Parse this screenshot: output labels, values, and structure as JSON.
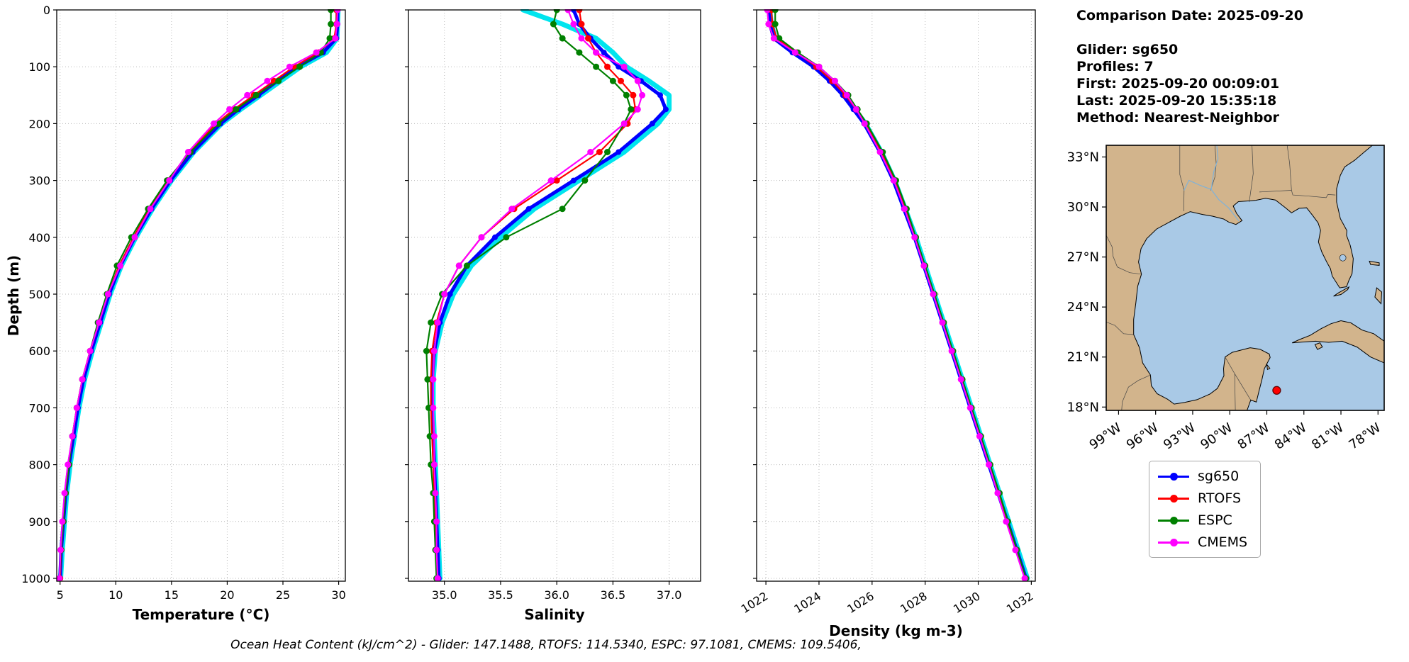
{
  "info_panel": {
    "comparison_date": "Comparison Date: 2025-09-20",
    "glider": "Glider: sg650",
    "profiles": "Profiles: 7",
    "first": "First: 2025-09-20 00:09:01",
    "last": "Last: 2025-09-20 15:35:18",
    "method": "Method: Nearest-Neighbor"
  },
  "footer_text": "Ocean Heat Content (kJ/cm^2) - Glider: 147.1488,  RTOFS: 114.5340,  ESPC: 97.1081,  CMEMS: 109.5406,",
  "legend": {
    "items": [
      {
        "label": "sg650",
        "color": "#0000ff"
      },
      {
        "label": "RTOFS",
        "color": "#ff0000"
      },
      {
        "label": "ESPC",
        "color": "#008000"
      },
      {
        "label": "CMEMS",
        "color": "#ff00ff"
      }
    ]
  },
  "map": {
    "extent": {
      "lon_min": -100,
      "lon_max": -77.5,
      "lat_min": 17.8,
      "lat_max": 33.7
    },
    "lat_ticks": [
      {
        "label": "33°N",
        "value": 33
      },
      {
        "label": "30°N",
        "value": 30
      },
      {
        "label": "27°N",
        "value": 27
      },
      {
        "label": "24°N",
        "value": 24
      },
      {
        "label": "21°N",
        "value": 21
      },
      {
        "label": "18°N",
        "value": 18
      }
    ],
    "lon_ticks": [
      {
        "label": "99°W",
        "value": -99
      },
      {
        "label": "96°W",
        "value": -96
      },
      {
        "label": "93°W",
        "value": -93
      },
      {
        "label": "90°W",
        "value": -90
      },
      {
        "label": "87°W",
        "value": -87
      },
      {
        "label": "84°W",
        "value": -84
      },
      {
        "label": "81°W",
        "value": -81
      },
      {
        "label": "78°W",
        "value": -78
      }
    ],
    "land_color": "#d2b48c",
    "ocean_color": "#a9c9e6",
    "marker": {
      "lon": -86.2,
      "lat": 19.0,
      "color": "#ff0000"
    }
  },
  "chart_data": [
    {
      "type": "line",
      "name": "temperature",
      "xlabel": "Temperature (°C)",
      "ylabel": "Depth (m)",
      "xlim": [
        4.7,
        30.6
      ],
      "xticks": [
        5,
        10,
        15,
        20,
        25,
        30
      ],
      "xtick_labels": [
        "5",
        "10",
        "15",
        "20",
        "25",
        "30"
      ],
      "xtick_rotation": 0,
      "ylim": [
        0,
        1005
      ],
      "yticks": [
        0,
        100,
        200,
        300,
        400,
        500,
        600,
        700,
        800,
        900,
        1000
      ],
      "show_ytick_labels": true,
      "grid": true,
      "depths": [
        0,
        25,
        50,
        75,
        100,
        125,
        150,
        175,
        200,
        250,
        300,
        350,
        400,
        450,
        500,
        550,
        600,
        650,
        700,
        750,
        800,
        850,
        900,
        950,
        1000
      ],
      "series": [
        {
          "name": "sg650-profiles",
          "color": "#00e5ee",
          "lw": 7,
          "ms": 0,
          "values": [
            29.95,
            29.9,
            29.85,
            28.9,
            26.6,
            24.8,
            23.0,
            21.2,
            19.5,
            17.0,
            15.0,
            13.3,
            11.8,
            10.5,
            9.5,
            8.7,
            7.9,
            7.2,
            6.7,
            6.3,
            5.9,
            5.6,
            5.4,
            5.2,
            5.05
          ]
        },
        {
          "name": "sg650",
          "color": "#0000ff",
          "lw": 5,
          "ms": 4,
          "values": [
            29.9,
            29.9,
            29.8,
            28.6,
            26.3,
            24.5,
            22.8,
            21.0,
            19.4,
            16.9,
            14.9,
            13.2,
            11.7,
            10.4,
            9.4,
            8.6,
            7.8,
            7.1,
            6.6,
            6.2,
            5.8,
            5.5,
            5.3,
            5.1,
            5.0
          ]
        },
        {
          "name": "RTOFS",
          "color": "#ff0000",
          "lw": 2.2,
          "ms": 4.5,
          "values": [
            29.8,
            29.8,
            29.6,
            28.2,
            26.0,
            24.2,
            22.4,
            20.6,
            19.0,
            16.6,
            14.7,
            13.0,
            11.6,
            10.3,
            9.3,
            8.5,
            7.7,
            7.0,
            6.5,
            6.1,
            5.8,
            5.5,
            5.3,
            5.1,
            5.0
          ]
        },
        {
          "name": "ESPC",
          "color": "#008000",
          "lw": 2.2,
          "ms": 4.5,
          "values": [
            29.3,
            29.3,
            29.2,
            28.4,
            26.5,
            24.6,
            22.6,
            20.8,
            19.2,
            16.7,
            14.6,
            12.9,
            11.4,
            10.1,
            9.2,
            8.4,
            7.7,
            7.0,
            6.5,
            6.1,
            5.8,
            5.5,
            5.3,
            5.1,
            4.95
          ]
        },
        {
          "name": "CMEMS",
          "color": "#ff00ff",
          "lw": 2.2,
          "ms": 4.5,
          "values": [
            29.9,
            29.85,
            29.7,
            28.0,
            25.6,
            23.6,
            21.8,
            20.2,
            18.8,
            16.5,
            14.8,
            13.1,
            11.7,
            10.4,
            9.3,
            8.5,
            7.7,
            7.0,
            6.5,
            6.1,
            5.7,
            5.4,
            5.2,
            5.05,
            4.95
          ]
        }
      ]
    },
    {
      "type": "line",
      "name": "salinity",
      "xlabel": "Salinity",
      "ylabel": "",
      "xlim": [
        34.68,
        37.28
      ],
      "xticks": [
        35.0,
        35.5,
        36.0,
        36.5,
        37.0
      ],
      "xtick_labels": [
        "35.0",
        "35.5",
        "36.0",
        "36.5",
        "37.0"
      ],
      "xtick_rotation": 0,
      "ylim": [
        0,
        1005
      ],
      "yticks": [
        0,
        100,
        200,
        300,
        400,
        500,
        600,
        700,
        800,
        900,
        1000
      ],
      "show_ytick_labels": false,
      "grid": true,
      "depths": [
        0,
        25,
        50,
        75,
        100,
        125,
        150,
        175,
        200,
        250,
        300,
        350,
        400,
        450,
        500,
        550,
        600,
        650,
        700,
        750,
        800,
        850,
        900,
        950,
        1000
      ],
      "series": [
        {
          "name": "sg650-profiles",
          "color": "#00e5ee",
          "lw": 7,
          "ms": 0,
          "values": [
            35.7,
            36.05,
            36.35,
            36.5,
            36.62,
            36.82,
            37.0,
            37.0,
            36.9,
            36.6,
            36.2,
            35.8,
            35.5,
            35.24,
            35.08,
            34.98,
            34.92,
            34.9,
            34.9,
            34.91,
            34.92,
            34.93,
            34.94,
            34.95,
            34.96
          ]
        },
        {
          "name": "sg650",
          "color": "#0000ff",
          "lw": 5,
          "ms": 4,
          "values": [
            36.15,
            36.2,
            36.3,
            36.42,
            36.55,
            36.75,
            36.92,
            36.97,
            36.85,
            36.55,
            36.15,
            35.75,
            35.45,
            35.2,
            35.05,
            34.96,
            34.91,
            34.89,
            34.89,
            34.9,
            34.91,
            34.92,
            34.93,
            34.94,
            34.95
          ]
        },
        {
          "name": "RTOFS",
          "color": "#ff0000",
          "lw": 2.2,
          "ms": 4.5,
          "values": [
            36.2,
            36.22,
            36.28,
            36.35,
            36.45,
            36.57,
            36.68,
            36.7,
            36.63,
            36.38,
            36.0,
            35.62,
            35.33,
            35.13,
            35.0,
            34.93,
            34.89,
            34.88,
            34.88,
            34.89,
            34.9,
            34.91,
            34.92,
            34.93,
            34.94
          ]
        },
        {
          "name": "ESPC",
          "color": "#008000",
          "lw": 2.2,
          "ms": 4.5,
          "values": [
            36.0,
            35.97,
            36.05,
            36.2,
            36.35,
            36.5,
            36.62,
            36.66,
            36.6,
            36.45,
            36.25,
            36.05,
            35.55,
            35.2,
            34.98,
            34.88,
            34.84,
            34.85,
            34.86,
            34.87,
            34.88,
            34.9,
            34.91,
            34.92,
            34.93
          ]
        },
        {
          "name": "CMEMS",
          "color": "#ff00ff",
          "lw": 2.2,
          "ms": 4.5,
          "values": [
            36.1,
            36.15,
            36.22,
            36.35,
            36.6,
            36.72,
            36.76,
            36.72,
            36.6,
            36.3,
            35.95,
            35.6,
            35.33,
            35.13,
            35.0,
            34.94,
            34.91,
            34.9,
            34.9,
            34.91,
            34.91,
            34.92,
            34.93,
            34.93,
            34.94
          ]
        }
      ]
    },
    {
      "type": "line",
      "name": "density",
      "xlabel": "Density (kg m-3)",
      "ylabel": "",
      "xlim": [
        1021.65,
        1032.15
      ],
      "xticks": [
        1022,
        1024,
        1026,
        1028,
        1030,
        1032
      ],
      "xtick_labels": [
        "1022",
        "1024",
        "1026",
        "1028",
        "1030",
        "1032"
      ],
      "xtick_rotation": 32,
      "ylim": [
        0,
        1005
      ],
      "yticks": [
        0,
        100,
        200,
        300,
        400,
        500,
        600,
        700,
        800,
        900,
        1000
      ],
      "show_ytick_labels": false,
      "grid": true,
      "depths": [
        0,
        25,
        50,
        75,
        100,
        125,
        150,
        175,
        200,
        250,
        300,
        350,
        400,
        450,
        500,
        550,
        600,
        650,
        700,
        750,
        800,
        850,
        900,
        950,
        1000
      ],
      "series": [
        {
          "name": "sg650-profiles",
          "color": "#00e5ee",
          "lw": 7,
          "ms": 0,
          "values": [
            1022.15,
            1022.2,
            1022.35,
            1023.05,
            1023.85,
            1024.45,
            1024.95,
            1025.35,
            1025.75,
            1026.35,
            1026.85,
            1027.25,
            1027.65,
            1028.0,
            1028.35,
            1028.7,
            1029.05,
            1029.4,
            1029.75,
            1030.1,
            1030.45,
            1030.8,
            1031.15,
            1031.5,
            1031.85
          ]
        },
        {
          "name": "sg650",
          "color": "#0000ff",
          "lw": 5,
          "ms": 4,
          "values": [
            1022.1,
            1022.15,
            1022.3,
            1023.0,
            1023.8,
            1024.4,
            1024.9,
            1025.3,
            1025.7,
            1026.3,
            1026.8,
            1027.2,
            1027.6,
            1027.95,
            1028.3,
            1028.65,
            1029.0,
            1029.35,
            1029.7,
            1030.05,
            1030.4,
            1030.75,
            1031.1,
            1031.45,
            1031.8
          ]
        },
        {
          "name": "RTOFS",
          "color": "#ff0000",
          "lw": 2.2,
          "ms": 4.5,
          "values": [
            1022.2,
            1022.25,
            1022.4,
            1023.15,
            1023.9,
            1024.5,
            1025.0,
            1025.4,
            1025.75,
            1026.35,
            1026.85,
            1027.25,
            1027.62,
            1027.97,
            1028.32,
            1028.67,
            1029.02,
            1029.37,
            1029.72,
            1030.07,
            1030.42,
            1030.77,
            1031.1,
            1031.45,
            1031.78
          ]
        },
        {
          "name": "ESPC",
          "color": "#008000",
          "lw": 2.2,
          "ms": 4.5,
          "values": [
            1022.35,
            1022.35,
            1022.5,
            1023.2,
            1024.0,
            1024.6,
            1025.1,
            1025.45,
            1025.8,
            1026.4,
            1026.9,
            1027.3,
            1027.65,
            1028.0,
            1028.35,
            1028.7,
            1029.05,
            1029.4,
            1029.75,
            1030.1,
            1030.45,
            1030.8,
            1031.12,
            1031.46,
            1031.8
          ]
        },
        {
          "name": "CMEMS",
          "color": "#ff00ff",
          "lw": 2.2,
          "ms": 4.5,
          "values": [
            1022.05,
            1022.1,
            1022.3,
            1023.1,
            1024.0,
            1024.6,
            1025.05,
            1025.4,
            1025.72,
            1026.3,
            1026.82,
            1027.22,
            1027.6,
            1027.95,
            1028.3,
            1028.65,
            1029.0,
            1029.35,
            1029.7,
            1030.05,
            1030.4,
            1030.73,
            1031.05,
            1031.4,
            1031.75
          ]
        }
      ]
    }
  ]
}
